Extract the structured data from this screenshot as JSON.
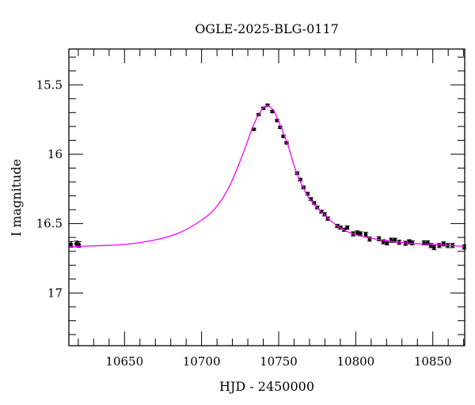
{
  "chart_data": {
    "type": "scatter",
    "title": "OGLE-2025-BLG-0117",
    "xlabel": "HJD - 2450000",
    "ylabel": "I magnitude",
    "xlim": [
      10613.9,
      10870.7
    ],
    "ylim": [
      17.38,
      15.242
    ],
    "y_inverted": true,
    "grid": false,
    "x_ticks": [
      10650,
      10700,
      10750,
      10800,
      10850
    ],
    "x_tick_labels": [
      "10650",
      "10700",
      "10750",
      "10800",
      "10850"
    ],
    "x_minor_step": 10,
    "y_ticks": [
      15.5,
      16,
      16.5,
      17
    ],
    "y_tick_labels": [
      "15.5",
      "16",
      "16.5",
      "17"
    ],
    "y_minor_step": 0.1,
    "colors": {
      "points": "#000000",
      "model": "#ff00ff"
    },
    "points": {
      "x": [
        10615.3,
        10618.7,
        10620.4,
        10733.9,
        10737.0,
        10740.1,
        10742.8,
        10745.9,
        10749.0,
        10751.0,
        10753.1,
        10755.1,
        10762.0,
        10764.0,
        10766.1,
        10768.8,
        10770.9,
        10773.0,
        10775.0,
        10777.7,
        10779.8,
        10781.9,
        10788.0,
        10790.1,
        10792.5,
        10794.5,
        10798.3,
        10801.0,
        10803.1,
        10806.5,
        10809.0,
        10815.1,
        10817.9,
        10820.3,
        10823.0,
        10825.4,
        10828.2,
        10832.3,
        10834.7,
        10836.7,
        10844.3,
        10846.7,
        10848.7,
        10850.8,
        10854.2,
        10857.0,
        10859.7,
        10862.8,
        10870.4
      ],
      "y": [
        16.65,
        16.646,
        16.65,
        15.821,
        15.715,
        15.669,
        15.647,
        15.692,
        15.757,
        15.806,
        15.871,
        15.918,
        16.137,
        16.183,
        16.239,
        16.285,
        16.323,
        16.352,
        16.384,
        16.414,
        16.433,
        16.464,
        16.517,
        16.529,
        16.544,
        16.529,
        16.574,
        16.567,
        16.574,
        16.578,
        16.612,
        16.609,
        16.631,
        16.639,
        16.62,
        16.62,
        16.635,
        16.642,
        16.631,
        16.639,
        16.639,
        16.639,
        16.658,
        16.673,
        16.658,
        16.646,
        16.658,
        16.658,
        16.669
      ],
      "err": [
        0.02,
        0.02,
        0.02,
        0.008,
        0.008,
        0.008,
        0.008,
        0.008,
        0.008,
        0.008,
        0.008,
        0.008,
        0.01,
        0.01,
        0.01,
        0.01,
        0.01,
        0.01,
        0.01,
        0.01,
        0.012,
        0.012,
        0.012,
        0.012,
        0.012,
        0.012,
        0.015,
        0.015,
        0.015,
        0.015,
        0.015,
        0.015,
        0.015,
        0.015,
        0.015,
        0.015,
        0.015,
        0.015,
        0.015,
        0.015,
        0.015,
        0.015,
        0.015,
        0.015,
        0.015,
        0.015,
        0.015,
        0.015,
        0.015
      ]
    },
    "model": {
      "x": [
        10613.9,
        10630,
        10650,
        10670.2,
        10685.6,
        10700,
        10709.6,
        10718.2,
        10726.7,
        10733.6,
        10737.8,
        10740.5,
        10742.4,
        10744.5,
        10747.3,
        10752.4,
        10756.5,
        10761,
        10769.5,
        10781.5,
        10790,
        10800,
        10812,
        10824.3,
        10836,
        10850,
        10870.7
      ],
      "y": [
        16.665,
        16.66,
        16.65,
        16.617,
        16.566,
        16.475,
        16.38,
        16.228,
        16.0,
        15.791,
        15.7,
        15.662,
        15.65,
        15.662,
        15.696,
        15.829,
        15.95,
        16.114,
        16.314,
        16.456,
        16.532,
        16.58,
        16.61,
        16.63,
        16.642,
        16.65,
        16.665
      ]
    }
  }
}
